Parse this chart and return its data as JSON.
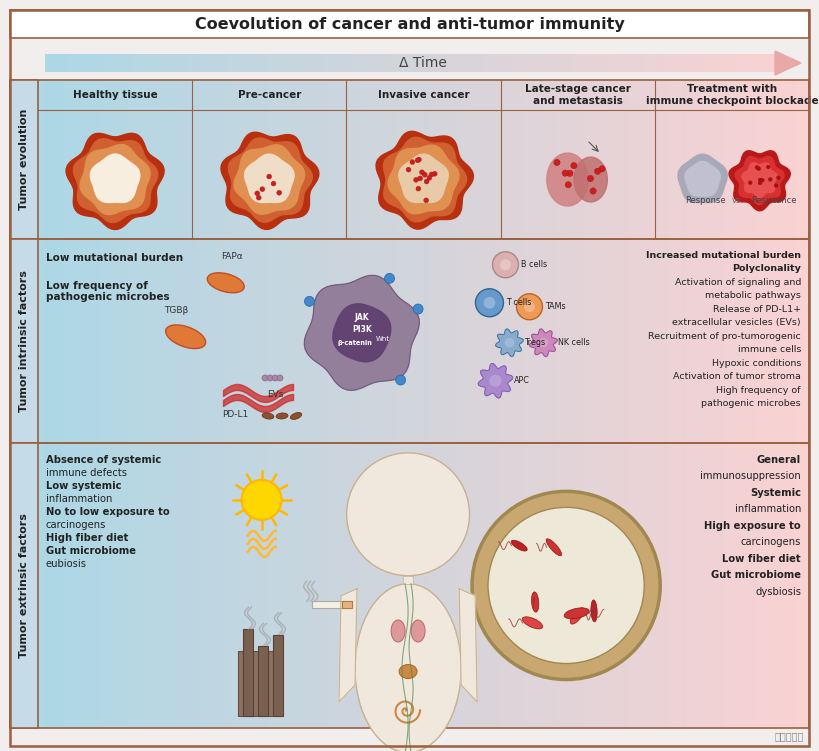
{
  "title": "Coevolution of cancer and anti-tumor immunity",
  "arrow_label": "Δ Time",
  "bg_color": "#f2eeee",
  "row1_headers": [
    "Healthy tissue",
    "Pre-cancer",
    "Invasive cancer",
    "Late-stage cancer\nand metastasis",
    "Treatment with\nimmune checkpoint blockade"
  ],
  "row_labels": [
    "Tumor evolution",
    "Tumor intrinsic factors",
    "Tumor extrinsic factors"
  ],
  "intrinsic_right_lines": [
    [
      "Increased mutational burden",
      true
    ],
    [
      "Polyclonality",
      true
    ],
    [
      "Activation of signaling and",
      false
    ],
    [
      "metabolic pathways",
      false
    ],
    [
      "Release of PD-L1+",
      false
    ],
    [
      "extracellular vesicles (EVs)",
      false
    ],
    [
      "Recruitment of pro-tumorogenic",
      false
    ],
    [
      "immune cells",
      false
    ],
    [
      "Hypoxic conditions",
      false
    ],
    [
      "Activation of tumor stroma",
      false
    ],
    [
      "High frequency of",
      false
    ],
    [
      "pathogenic microbes",
      false
    ]
  ],
  "extrinsic_left_lines": [
    [
      "Absence of systemic",
      true
    ],
    [
      "immune defects",
      false
    ],
    [
      "Low systemic",
      true
    ],
    [
      "inflammation",
      false
    ],
    [
      "No to low exposure to",
      true
    ],
    [
      "carcinogens",
      false
    ],
    [
      "High fiber diet",
      true
    ],
    [
      "Gut microbiome",
      true
    ],
    [
      "eubiosis",
      false
    ]
  ],
  "extrinsic_right_lines": [
    [
      "General",
      true
    ],
    [
      "immunosuppression",
      false
    ],
    [
      "Systemic",
      true
    ],
    [
      "inflammation",
      false
    ],
    [
      "High exposure to",
      true
    ],
    [
      "carcinogens",
      false
    ],
    [
      "Low fiber diet",
      true
    ],
    [
      "Gut microbiome",
      true
    ],
    [
      "dysbiosis",
      false
    ]
  ],
  "watermark": "外泌体之家"
}
